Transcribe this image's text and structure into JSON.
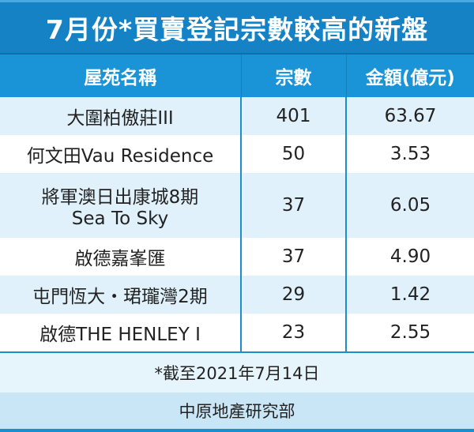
{
  "title": "7月份*買賣登記宗數較高的新盤",
  "columns": [
    "屋苑名稱",
    "宗數",
    "金額(億元)"
  ],
  "rows": [
    {
      "name": "大圍柏傲莊III",
      "name2": "",
      "count": "401",
      "amount": "63.67"
    },
    {
      "name": "何文田Vau Residence",
      "name2": "",
      "count": "50",
      "amount": "3.53"
    },
    {
      "name": "將軍澳日出康城8期",
      "name2": "Sea To Sky",
      "count": "37",
      "amount": "6.05"
    },
    {
      "name": "啟德嘉峯匯",
      "name2": "",
      "count": "37",
      "amount": "4.90"
    },
    {
      "name": "屯門恆大・珺瓏灣2期",
      "name2": "",
      "count": "29",
      "amount": "1.42"
    },
    {
      "name": "啟德THE HENLEY I",
      "name2": "",
      "count": "23",
      "amount": "2.55"
    }
  ],
  "footnote": "*截至2021年7月14日",
  "source": "中原地產研究部",
  "colors": {
    "title_bg": "#1682c6",
    "header_bg": "#1a94d6",
    "row_alt": "#e0f1fb"
  }
}
